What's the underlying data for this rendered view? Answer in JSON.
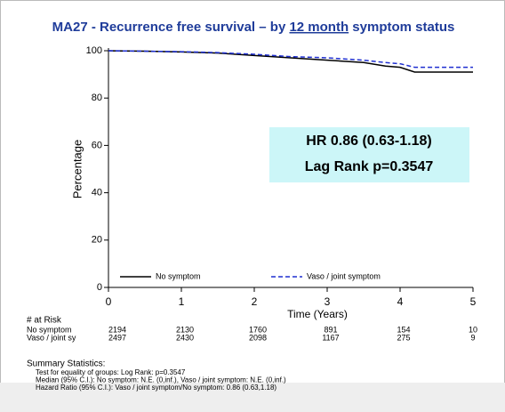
{
  "chart_data": {
    "type": "line",
    "title_parts": [
      "MA27 - Recurrence free survival – by ",
      "12 month",
      " symptom status"
    ],
    "xlabel": "Time (Years)",
    "ylabel": "Percentage",
    "x": [
      0,
      0.5,
      1,
      1.5,
      2,
      2.5,
      3,
      3.5,
      3.8,
      4,
      4.2,
      5
    ],
    "series": [
      {
        "name": "No symptom",
        "color": "#000000",
        "dash": false,
        "values": [
          100,
          99.8,
          99.5,
          99,
          98,
          97,
          96,
          95,
          93.5,
          93,
          91,
          91
        ]
      },
      {
        "name": "Vaso / joint symptom",
        "color": "#1f2fd0",
        "dash": true,
        "values": [
          100,
          99.8,
          99.6,
          99.2,
          98.5,
          97.5,
          97,
          96,
          95,
          94.5,
          93,
          93
        ]
      }
    ],
    "xlim": [
      0,
      5
    ],
    "xticks": [
      0,
      1,
      2,
      3,
      4,
      5
    ],
    "ylim": [
      0,
      100
    ],
    "yticks": [
      0,
      20,
      40,
      60,
      80,
      100
    ],
    "annotations": [
      "HR 0.86 (0.63-1.18)",
      "Lag Rank p=0.3547"
    ]
  },
  "at_risk": {
    "title": "# at Risk",
    "rows": [
      {
        "label": "No symptom",
        "values": [
          "2194",
          "2130",
          "1760",
          "891",
          "154",
          "10"
        ]
      },
      {
        "label": "Vaso / joint sy",
        "values": [
          "2497",
          "2430",
          "2098",
          "1167",
          "275",
          "9"
        ]
      }
    ]
  },
  "summary": {
    "title": "Summary Statistics:",
    "lines": [
      "Test for equality of groups:  Log Rank: p=0.3547",
      "Median (95% C.I.):  No symptom: N.E. (0,inf.),  Vaso / joint symptom: N.E. (0,inf.)",
      "Hazard Ratio (95% C.I.):  Vaso / joint symptom/No symptom: 0.86 (0.63,1.18)"
    ]
  }
}
